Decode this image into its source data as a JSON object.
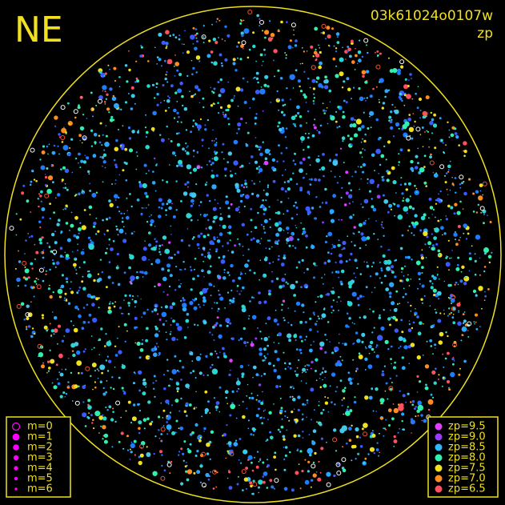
{
  "header": {
    "title": "NE",
    "image_id": "03k61024o0107w",
    "mode": "zp"
  },
  "legend_left": {
    "items": [
      {
        "label": "m=0",
        "size": 4.5
      },
      {
        "label": "m=1",
        "size": 3.8
      },
      {
        "label": "m=2",
        "size": 3.2
      },
      {
        "label": "m=3",
        "size": 2.6
      },
      {
        "label": "m=4",
        "size": 2.1
      },
      {
        "label": "m=5",
        "size": 1.6
      },
      {
        "label": "m=6",
        "size": 1.1
      }
    ],
    "color": "#ff00ff"
  },
  "legend_right": {
    "items": [
      {
        "label": "zp=9.5",
        "color": "#e040ff"
      },
      {
        "label": "zp=9.0",
        "color": "#9a3cff"
      },
      {
        "label": "zp=8.5",
        "color": "#30b8ff"
      },
      {
        "label": "zp=8.0",
        "color": "#30f0b0"
      },
      {
        "label": "zp=7.5",
        "color": "#f0e020"
      },
      {
        "label": "zp=7.0",
        "color": "#ff8c20"
      },
      {
        "label": "zp=6.5",
        "color": "#ff5060"
      }
    ]
  }
}
